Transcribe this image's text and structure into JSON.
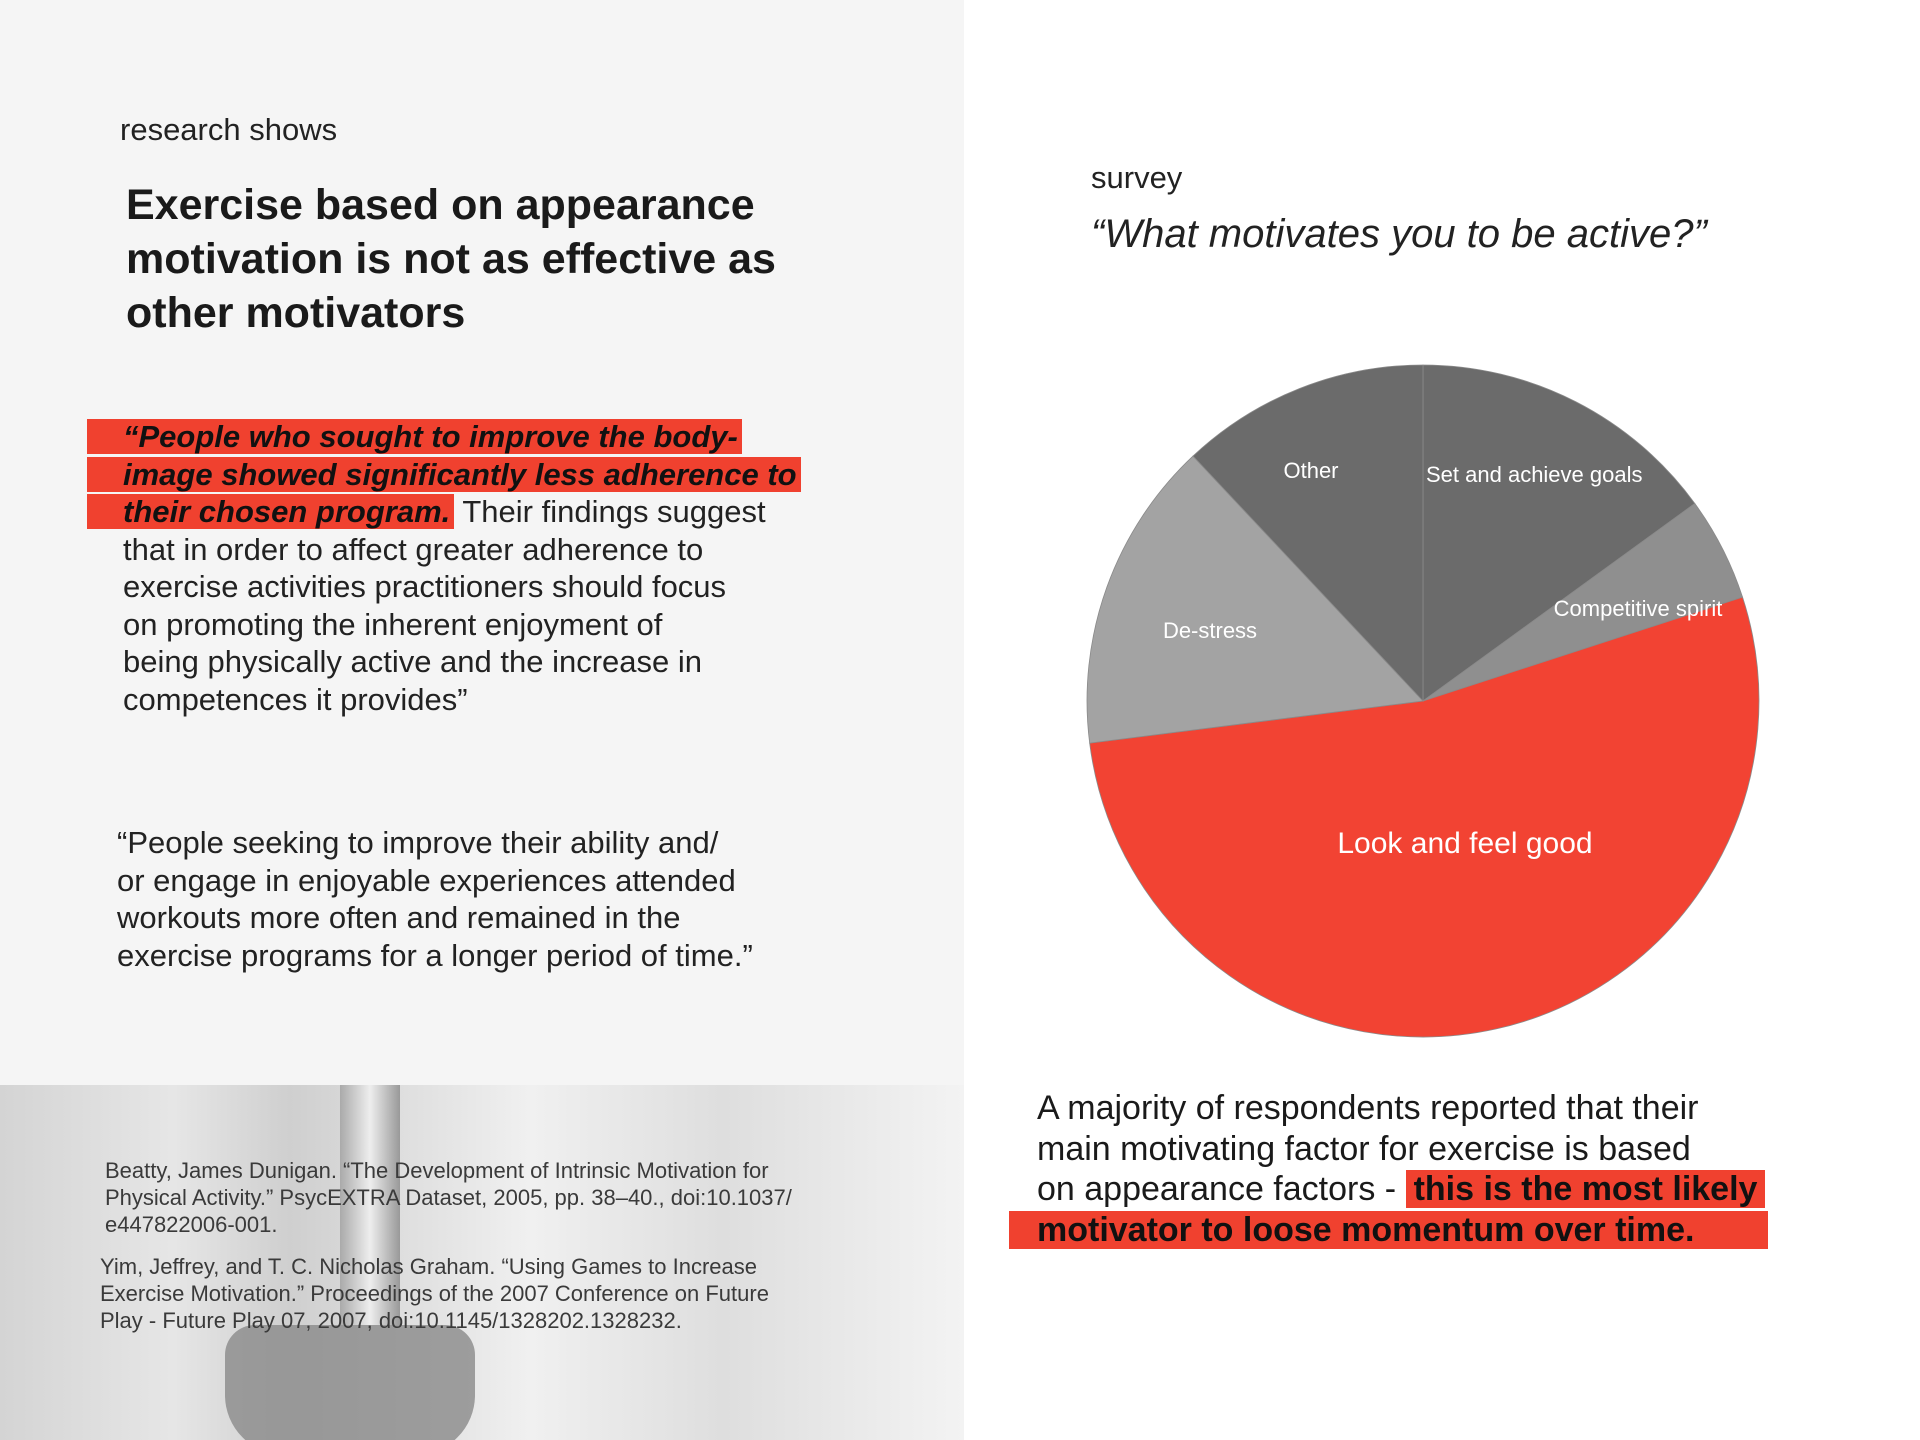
{
  "left": {
    "eyebrow": "research shows",
    "heading_lines": [
      "Exercise based on appearance",
      "motivation is not as effective as",
      "other motivators"
    ],
    "quote1": {
      "highlight_lines": [
        "“People who sought to improve the body-",
        "image showed significantly less adherence to",
        "their chosen program."
      ],
      "rest_first": " Their findings suggest",
      "rest_lines": [
        "that in order to affect greater adherence to",
        "exercise activities practitioners should focus",
        "on promoting the inherent enjoyment of",
        "being physically active and the increase in",
        "competences it provides”"
      ]
    },
    "quote2_lines": [
      "“People seeking to improve their ability and/",
      "or engage in enjoyable experiences attended",
      "workouts more often and remained in the",
      "exercise programs for a longer period of time.”"
    ],
    "citations": [
      [
        "Beatty, James Dunigan. “The Development of Intrinsic Motivation for",
        "Physical Activity.” PsycEXTRA Dataset, 2005, pp. 38–40., doi:10.1037/",
        "e447822006-001."
      ],
      [
        "Yim, Jeffrey, and T. C. Nicholas Graham. “Using Games to Increase",
        "Exercise Motivation.” Proceedings of the 2007 Conference on Future",
        "Play - Future Play 07, 2007, doi:10.1145/1328202.1328232."
      ]
    ]
  },
  "right": {
    "eyebrow": "survey",
    "question": "“What motivates you to be active?”",
    "summary_plain_lines": [
      "A majority of respondents reported that their",
      "main motivating factor for exercise is based",
      "on appearance factors - "
    ],
    "summary_highlight": [
      "this is the most likely",
      "motivator to loose momentum over time."
    ]
  },
  "chart_data": {
    "type": "pie",
    "start": "12 o'clock, clockwise",
    "slices": [
      {
        "label": "Set and achieve goals",
        "value": 15,
        "color": "#6b6b6b"
      },
      {
        "label": "Competitive spirit",
        "value": 5,
        "color": "#8f8f8f"
      },
      {
        "label": "Look and feel good",
        "value": 53,
        "color": "#f24333"
      },
      {
        "label": "De-stress",
        "value": 15,
        "color": "#a3a3a3"
      },
      {
        "label": "Other",
        "value": 12,
        "color": "#6b6b6b"
      }
    ]
  },
  "colors": {
    "accent": "#f0412f",
    "panel": "#f5f5f5"
  }
}
